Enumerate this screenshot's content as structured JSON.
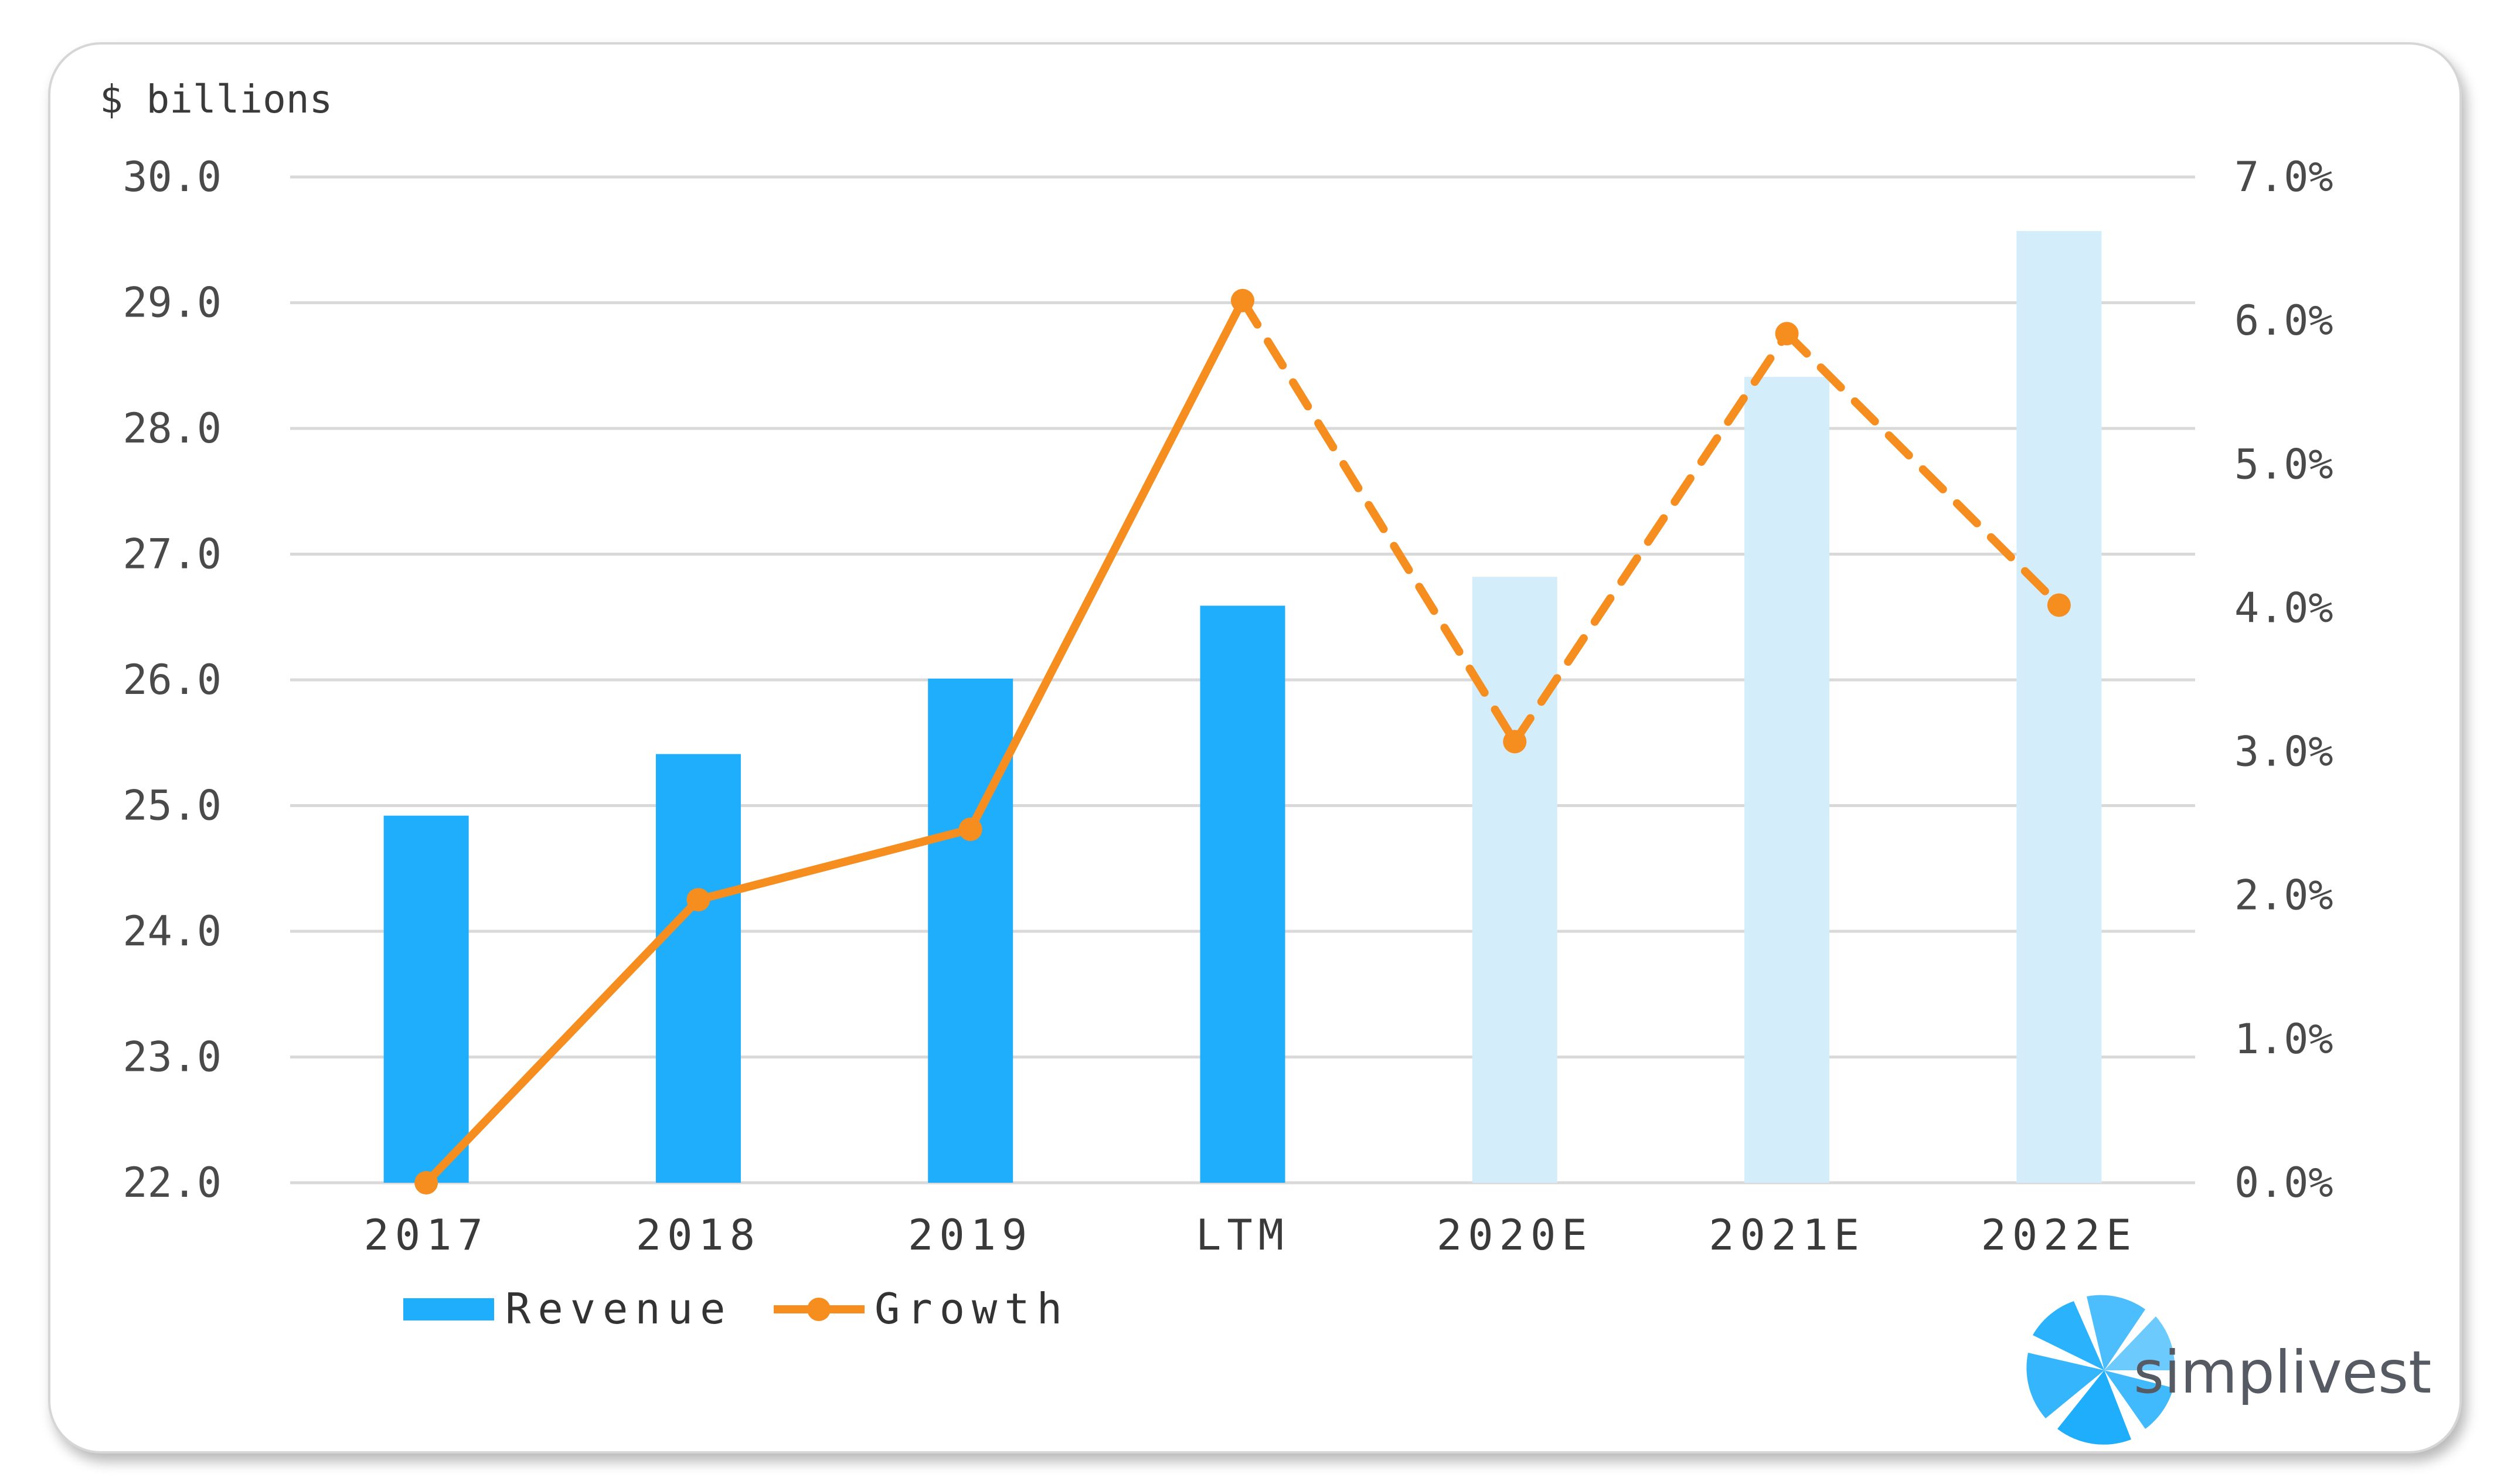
{
  "chart_data": {
    "type": "bar",
    "unit_label": "$ billions",
    "categories": [
      "2017",
      "2018",
      "2019",
      "LTM",
      "2020E",
      "2021E",
      "2022E"
    ],
    "series": [
      {
        "name": "Revenue",
        "type": "bar",
        "axis": "left",
        "values": [
          24.92,
          25.41,
          26.01,
          26.59,
          26.82,
          28.41,
          29.57
        ],
        "estimated": [
          false,
          false,
          false,
          false,
          true,
          true,
          true
        ]
      },
      {
        "name": "Growth",
        "type": "line",
        "axis": "right",
        "values": [
          0.0,
          1.97,
          2.46,
          6.14,
          3.07,
          5.91,
          4.02
        ],
        "estimated": [
          false,
          false,
          false,
          false,
          true,
          true,
          true
        ]
      }
    ],
    "ylim": [
      22,
      30
    ],
    "yticks": [
      "22.0",
      "23.0",
      "24.0",
      "25.0",
      "26.0",
      "27.0",
      "28.0",
      "29.0",
      "30.0"
    ],
    "y2lim": [
      0,
      7
    ],
    "y2ticks": [
      "0.0%",
      "1.0%",
      "2.0%",
      "3.0%",
      "4.0%",
      "5.0%",
      "6.0%",
      "7.0%"
    ],
    "grid": true,
    "legend_position": "bottom-left",
    "colors": {
      "bar_actual": "#1faefc",
      "bar_estimate": "#d3edfb",
      "line": "#f68d1f",
      "grid": "#d9d9d9"
    }
  },
  "brand": {
    "name": "simplivest",
    "logo_color": "#1faefc"
  }
}
